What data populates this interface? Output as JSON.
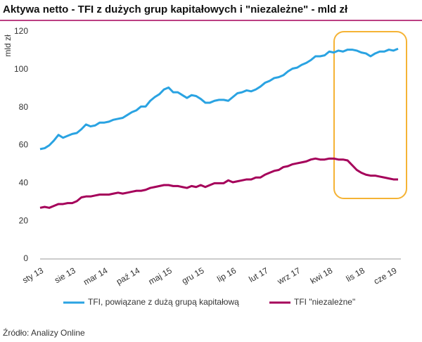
{
  "chart_data": {
    "type": "line",
    "title": "Aktywa netto - TFI z dużych grup kapitałowych i \"niezależne\" - mld zł",
    "y_label": "mld zł",
    "categories": [
      "sty 13",
      null,
      null,
      null,
      null,
      null,
      null,
      "sie 13",
      null,
      null,
      null,
      null,
      null,
      null,
      "mar 14",
      null,
      null,
      null,
      null,
      null,
      null,
      "paź 14",
      null,
      null,
      null,
      null,
      null,
      null,
      "maj 15",
      null,
      null,
      null,
      null,
      null,
      null,
      "gru 15",
      null,
      null,
      null,
      null,
      null,
      null,
      "lip 16",
      null,
      null,
      null,
      null,
      null,
      null,
      "lut 17",
      null,
      null,
      null,
      null,
      null,
      null,
      "wrz 17",
      null,
      null,
      null,
      null,
      null,
      null,
      "kwi 18",
      null,
      null,
      null,
      null,
      null,
      null,
      "lis 18",
      null,
      null,
      null,
      null,
      null,
      null,
      "cze 19",
      null
    ],
    "series": [
      {
        "name": "TFI, powiązane z dużą grupą kapitałową",
        "color": "#2aa3e2",
        "values": [
          58,
          58.5,
          60,
          62.5,
          65.5,
          64,
          65,
          66,
          66.5,
          68.5,
          71,
          70,
          70.5,
          72,
          72,
          72.5,
          73.5,
          74,
          74.5,
          76,
          77.5,
          78.5,
          80.5,
          80.5,
          83.5,
          85.5,
          87,
          89.5,
          90.5,
          88,
          88,
          86.5,
          85,
          86.5,
          86,
          84.5,
          82.5,
          82.5,
          83.5,
          84,
          84,
          83.5,
          85.5,
          87.5,
          88,
          89,
          88.5,
          89.5,
          91,
          93,
          94,
          95.5,
          96,
          97,
          99,
          100.5,
          101,
          102.5,
          103.5,
          105,
          107,
          107,
          107.5,
          109.5,
          109,
          110,
          109.5,
          110.5,
          110.5,
          110,
          109,
          108.5,
          107,
          108.5,
          109.5,
          109.5,
          110.5,
          110,
          111
        ]
      },
      {
        "name": "TFI \"niezależne\"",
        "color": "#a5005a",
        "values": [
          27,
          27.5,
          27,
          28,
          29,
          29,
          29.5,
          29.5,
          30.5,
          32.5,
          33,
          33,
          33.5,
          34,
          34,
          34,
          34.5,
          35,
          34.5,
          35,
          35.5,
          36,
          36,
          36.5,
          37.5,
          38,
          38.5,
          39,
          39,
          38.5,
          38.5,
          38,
          37.5,
          38.5,
          38,
          39,
          38,
          39,
          40,
          40,
          40,
          41.5,
          40.5,
          41,
          41.5,
          42,
          42,
          43,
          43,
          44.5,
          45.5,
          46.5,
          47,
          48.5,
          49,
          50,
          50.5,
          51,
          51.5,
          52.5,
          53,
          52.5,
          52.5,
          53,
          53,
          52.5,
          52.5,
          52,
          49.5,
          47,
          45.5,
          44.5,
          44,
          44,
          43.5,
          43,
          42.5,
          42,
          42
        ]
      }
    ],
    "ylim": [
      0,
      120
    ],
    "yticks": [
      0,
      20,
      40,
      60,
      80,
      100,
      120
    ],
    "grid": false
  },
  "source": "Źródło: Analizy Online"
}
